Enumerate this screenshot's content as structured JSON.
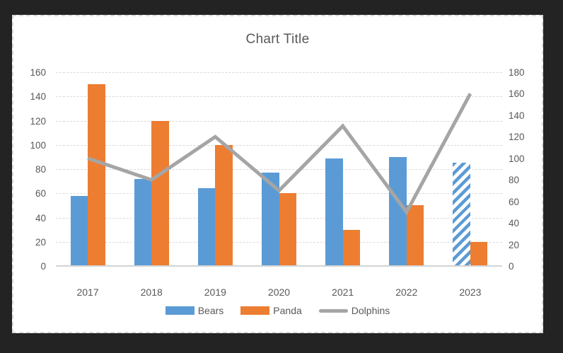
{
  "chart_data": {
    "type": "combo",
    "title": "Chart Title",
    "categories": [
      "2017",
      "2018",
      "2019",
      "2020",
      "2021",
      "2022",
      "2023"
    ],
    "series": [
      {
        "name": "Bears",
        "type": "bar",
        "axis": "left",
        "color": "#5b9bd5",
        "values": [
          58,
          72,
          64,
          77,
          89,
          90,
          85
        ],
        "hatched_indices": [
          6
        ]
      },
      {
        "name": "Panda",
        "type": "bar",
        "axis": "left",
        "color": "#ed7d31",
        "values": [
          150,
          120,
          100,
          60,
          30,
          50,
          20
        ],
        "hatched_indices": []
      },
      {
        "name": "Dolphins",
        "type": "line",
        "axis": "right",
        "color": "#a5a5a5",
        "values": [
          100,
          80,
          120,
          70,
          130,
          50,
          160
        ]
      }
    ],
    "left_axis": {
      "min": 0,
      "max": 160,
      "step": 20,
      "ticks": [
        "0",
        "20",
        "40",
        "60",
        "80",
        "100",
        "120",
        "140",
        "160"
      ]
    },
    "right_axis": {
      "min": 0,
      "max": 180,
      "step": 20,
      "ticks": [
        "0",
        "20",
        "40",
        "60",
        "80",
        "100",
        "120",
        "140",
        "160",
        "180"
      ]
    },
    "legend": {
      "position": "bottom",
      "items": [
        "Bears",
        "Panda",
        "Dolphins"
      ]
    },
    "grid": true
  },
  "colors": {
    "window_background": "#232323",
    "chart_background": "#ffffff",
    "chart_border": "#d9d9d9",
    "gridline": "#d9d9d9",
    "axis_line": "#d3d3d3",
    "text": "#595959",
    "bears": "#5b9bd5",
    "panda": "#ed7d31",
    "dolphins": "#a5a5a5"
  }
}
